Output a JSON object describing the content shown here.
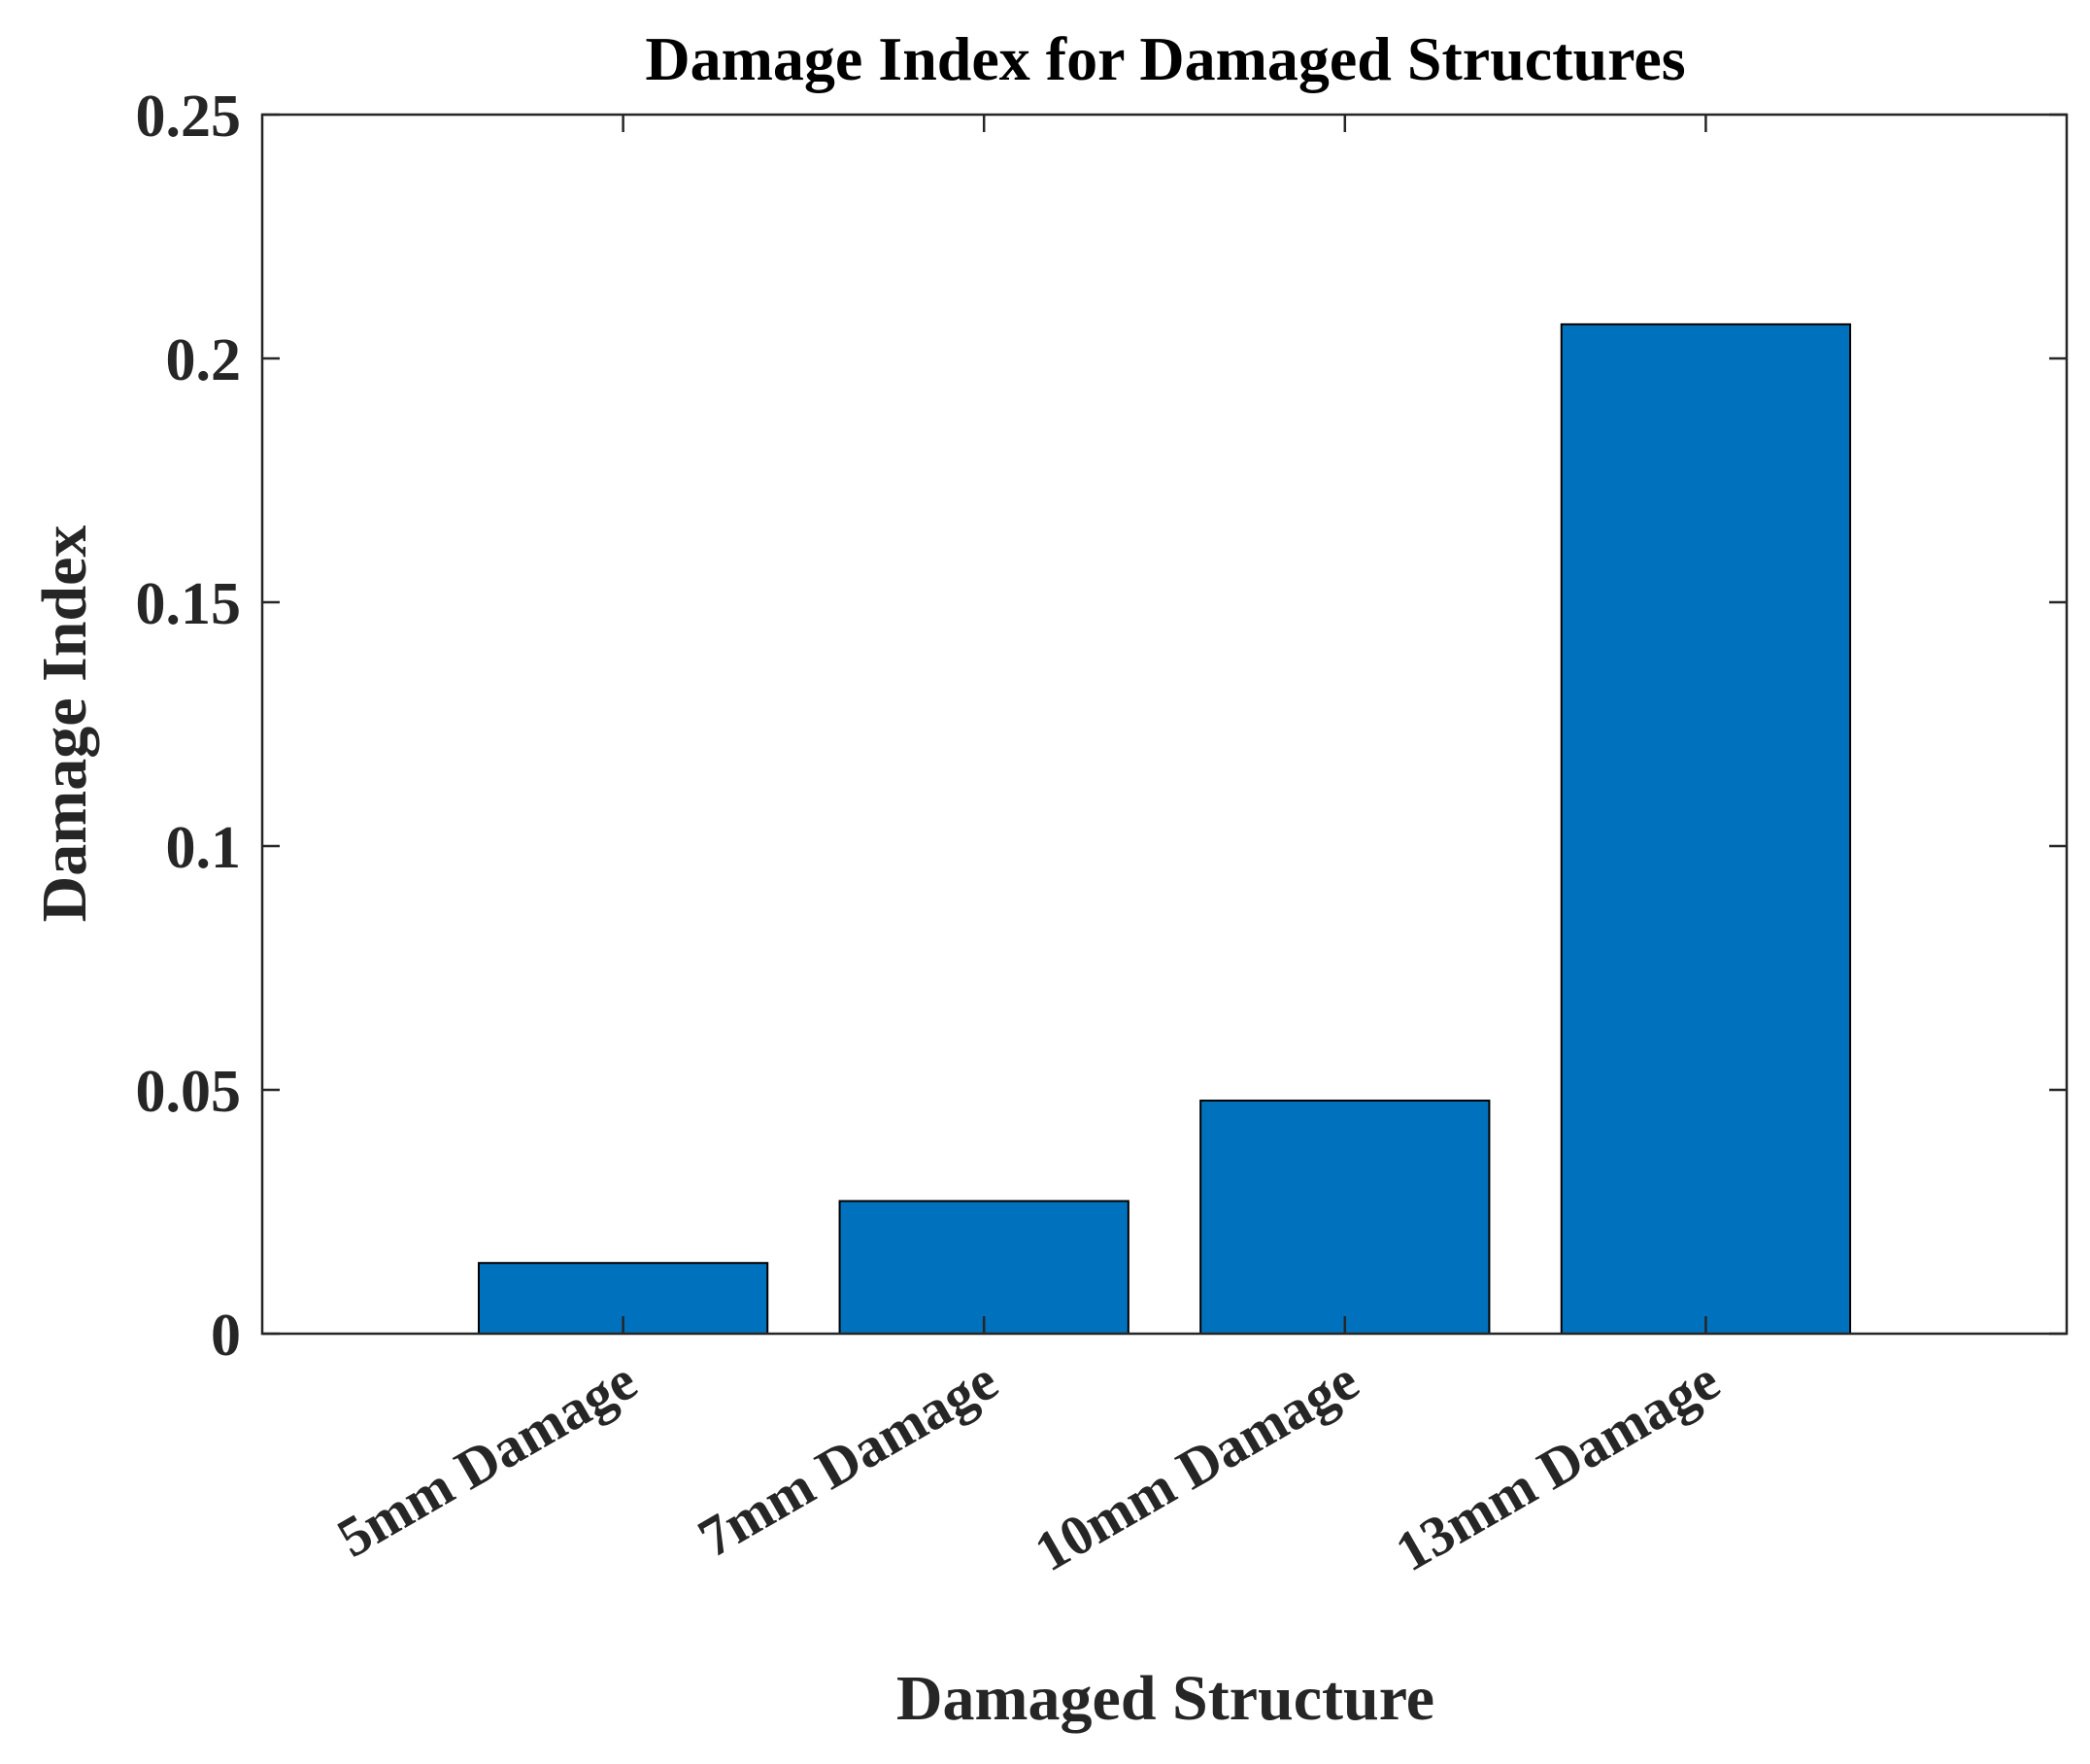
{
  "chart_data": {
    "type": "bar",
    "title": "Damage Index for Damaged Structures",
    "xlabel": "Damaged Structure",
    "ylabel": "Damage Index",
    "categories": [
      "5mm Damage",
      "7mm Damage",
      "10mm Damage",
      "13mm Damage"
    ],
    "values": [
      0.0145,
      0.0272,
      0.0478,
      0.207
    ],
    "ylim": [
      0,
      0.25
    ],
    "yticks": [
      "0",
      "0.05",
      "0.1",
      "0.15",
      "0.2",
      "0.25"
    ],
    "ytick_values": [
      0,
      0.05,
      0.1,
      0.15,
      0.2,
      0.25
    ],
    "xlim": [
      0,
      5
    ],
    "grid": false,
    "bar_color": "#0072BD",
    "edge_color": "#000000",
    "axis_color": "#262626"
  }
}
